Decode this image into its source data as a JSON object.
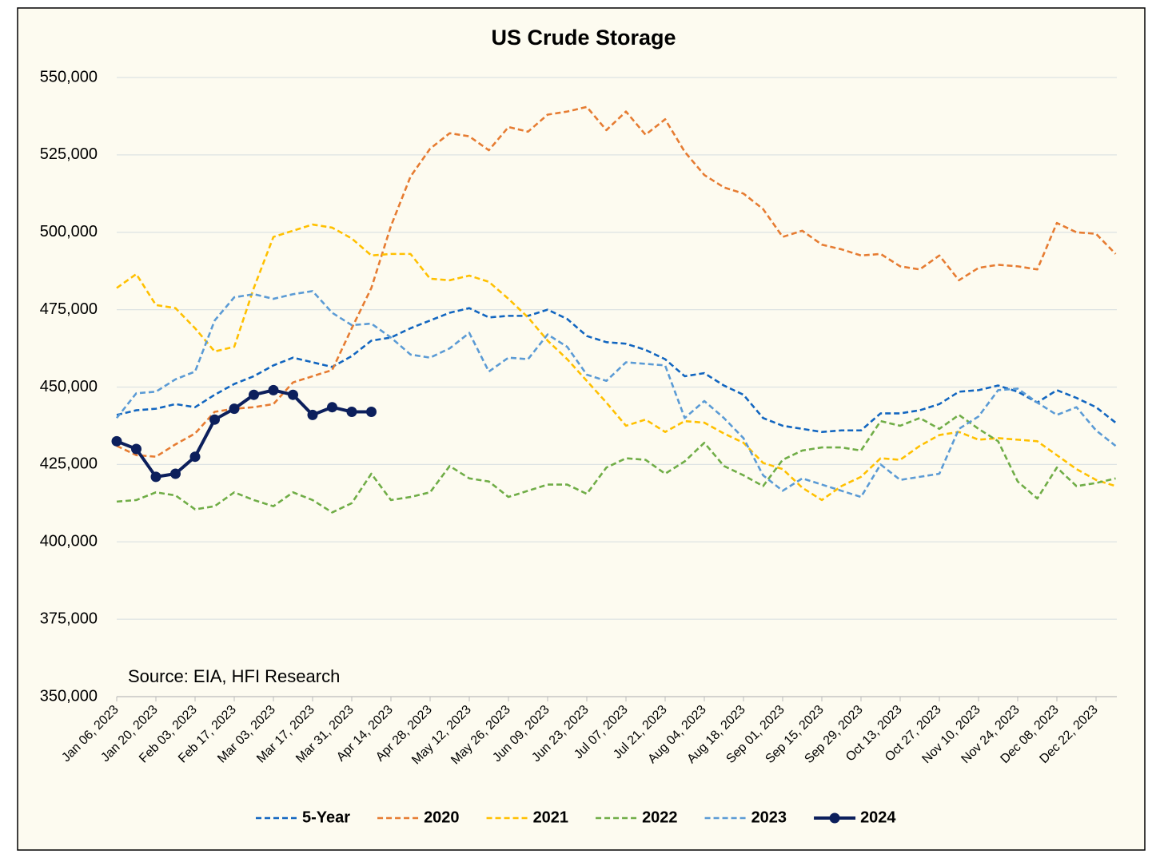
{
  "chart_data": {
    "type": "line",
    "title": "US Crude Storage",
    "annotations": {
      "source": "Source: EIA, HFI Research"
    },
    "categories": [
      "Jan 06, 2023",
      null,
      "Jan 20, 2023",
      null,
      "Feb 03, 2023",
      null,
      "Feb 17, 2023",
      null,
      "Mar 03, 2023",
      null,
      "Mar 17, 2023",
      null,
      "Mar 31, 2023",
      null,
      "Apr 14, 2023",
      null,
      "Apr 28, 2023",
      null,
      "May 12, 2023",
      null,
      "May 26, 2023",
      null,
      "Jun 09, 2023",
      null,
      "Jun 23, 2023",
      null,
      "Jul 07, 2023",
      null,
      "Jul 21, 2023",
      null,
      "Aug 04, 2023",
      null,
      "Aug 18, 2023",
      null,
      "Sep 01, 2023",
      null,
      "Sep 15, 2023",
      null,
      "Sep 29, 2023",
      null,
      "Oct 13, 2023",
      null,
      "Oct 27, 2023",
      null,
      "Nov 10, 2023",
      null,
      "Nov 24, 2023",
      null,
      "Dec 08, 2023",
      null,
      "Dec 22, 2023",
      null
    ],
    "ylim": [
      350000,
      550000
    ],
    "yticks": [
      {
        "value": 350000,
        "label": "350,000"
      },
      {
        "value": 375000,
        "label": "375,000"
      },
      {
        "value": 400000,
        "label": "400,000"
      },
      {
        "value": 425000,
        "label": "425,000"
      },
      {
        "value": 450000,
        "label": "450,000"
      },
      {
        "value": 475000,
        "label": "475,000"
      },
      {
        "value": 500000,
        "label": "500,000"
      },
      {
        "value": 525000,
        "label": "525,000"
      },
      {
        "value": 550000,
        "label": "550,000"
      }
    ],
    "grid": true,
    "legend": "bottom",
    "series": [
      {
        "name": "5-Year",
        "color": "#1266c0",
        "dashed": true,
        "markers": false,
        "values": [
          441000,
          442500,
          443000,
          444500,
          443500,
          447500,
          451000,
          453500,
          457000,
          459500,
          458000,
          456500,
          460000,
          465000,
          466000,
          469000,
          471500,
          474000,
          475500,
          472500,
          473000,
          473000,
          475000,
          472000,
          466500,
          464500,
          464000,
          462000,
          459000,
          453500,
          454500,
          450500,
          447500,
          440000,
          437500,
          436500,
          435500,
          436000,
          436000,
          441500,
          441500,
          442500,
          444500,
          448500,
          449000,
          450500,
          448500,
          445000,
          449000,
          446500,
          443500,
          438500
        ]
      },
      {
        "name": "2020",
        "color": "#e67c32",
        "dashed": true,
        "markers": false,
        "values": [
          431000,
          428000,
          427500,
          431500,
          435000,
          442000,
          443000,
          443500,
          444500,
          451500,
          453500,
          455500,
          469000,
          482000,
          502000,
          518000,
          527000,
          532000,
          531000,
          526500,
          534000,
          532500,
          538000,
          539000,
          540500,
          533000,
          539000,
          531500,
          536500,
          526000,
          518500,
          514500,
          512500,
          507500,
          498500,
          500500,
          496000,
          494500,
          492500,
          493000,
          489000,
          488000,
          492500,
          484500,
          488500,
          489500,
          489000,
          488000,
          503000,
          500000,
          499500,
          493000
        ]
      },
      {
        "name": "2021",
        "color": "#ffc000",
        "dashed": true,
        "markers": false,
        "values": [
          482000,
          486500,
          476500,
          475500,
          469000,
          461500,
          463000,
          482000,
          498500,
          500500,
          502500,
          501500,
          498000,
          492500,
          493000,
          493000,
          485000,
          484500,
          486000,
          484000,
          478500,
          472500,
          465000,
          459000,
          452000,
          445000,
          437500,
          439500,
          435500,
          439000,
          438500,
          435000,
          432000,
          425500,
          423500,
          417500,
          413500,
          418000,
          421000,
          427000,
          426500,
          431000,
          434500,
          435500,
          433000,
          433500,
          433000,
          432500,
          428000,
          423500,
          420000,
          418000
        ]
      },
      {
        "name": "2022",
        "color": "#70ad47",
        "dashed": true,
        "markers": false,
        "values": [
          413000,
          413500,
          416000,
          415000,
          410500,
          411500,
          416000,
          413500,
          411500,
          416000,
          413500,
          409500,
          412500,
          422000,
          413500,
          414500,
          416000,
          424500,
          420500,
          419500,
          414500,
          416500,
          418500,
          418500,
          415500,
          424000,
          427000,
          426500,
          422000,
          426000,
          432000,
          424500,
          421500,
          418000,
          426500,
          429500,
          430500,
          430500,
          429500,
          439000,
          437500,
          440000,
          436500,
          441000,
          436500,
          432500,
          419500,
          414000,
          424000,
          418000,
          419000,
          420500
        ]
      },
      {
        "name": "2023",
        "color": "#5b9bd5",
        "dashed": true,
        "markers": false,
        "values": [
          440000,
          448000,
          448500,
          452500,
          455000,
          471500,
          479000,
          480000,
          478500,
          480000,
          481000,
          474000,
          470000,
          470500,
          466000,
          460500,
          459500,
          462500,
          467500,
          455000,
          459500,
          459000,
          467000,
          463000,
          454000,
          452000,
          458000,
          457500,
          457000,
          440000,
          445500,
          440000,
          433500,
          421500,
          416500,
          420500,
          418500,
          416500,
          414500,
          425000,
          420000,
          421000,
          422000,
          436500,
          440500,
          449000,
          449500,
          445000,
          441000,
          443500,
          436000,
          431000
        ]
      },
      {
        "name": "2024",
        "color": "#0c1f5c",
        "dashed": false,
        "markers": true,
        "values": [
          432500,
          430000,
          421000,
          422000,
          427500,
          439500,
          443000,
          447500,
          449000,
          447500,
          441000,
          443500,
          442000,
          442000,
          null,
          null,
          null,
          null,
          null,
          null,
          null,
          null,
          null,
          null,
          null,
          null,
          null,
          null,
          null,
          null,
          null,
          null,
          null,
          null,
          null,
          null,
          null,
          null,
          null,
          null,
          null,
          null,
          null,
          null,
          null,
          null,
          null,
          null,
          null,
          null,
          null,
          null
        ]
      }
    ]
  }
}
